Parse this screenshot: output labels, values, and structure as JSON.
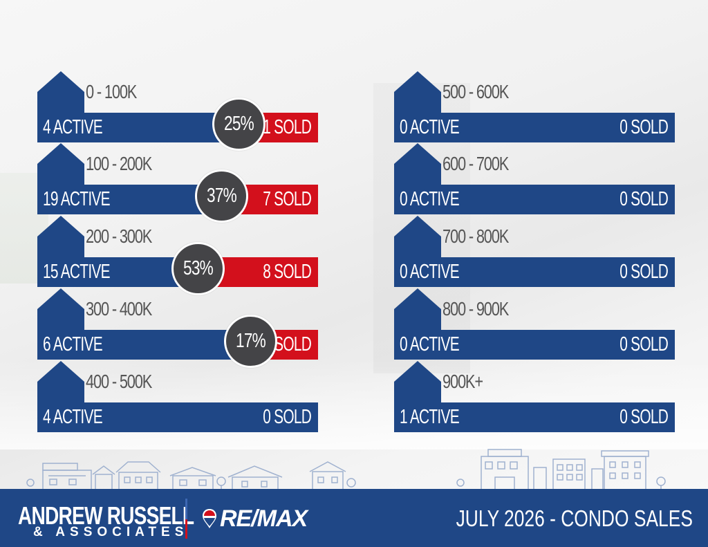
{
  "rows_left": [
    {
      "range": "0 - 100K",
      "active": "4 ACTIVE",
      "sold": "1 SOLD",
      "percent": "25%",
      "sold_fraction": 0.25
    },
    {
      "range": "100 - 200K",
      "active": "19 ACTIVE",
      "sold": "7 SOLD",
      "percent": "37%",
      "sold_fraction": 0.37
    },
    {
      "range": "200 - 300K",
      "active": "15 ACTIVE",
      "sold": "8 SOLD",
      "percent": "53%",
      "sold_fraction": 0.53
    },
    {
      "range": "300 - 400K",
      "active": "6 ACTIVE",
      "sold": "1 SOLD",
      "percent": "17%",
      "sold_fraction": 0.17
    },
    {
      "range": "400 - 500K",
      "active": "4 ACTIVE",
      "sold": "0 SOLD",
      "percent": "",
      "sold_fraction": 0
    }
  ],
  "rows_right": [
    {
      "range": "500 - 600K",
      "active": "0 ACTIVE",
      "sold": "0 SOLD",
      "percent": "",
      "sold_fraction": 0
    },
    {
      "range": "600 - 700K",
      "active": "0 ACTIVE",
      "sold": "0 SOLD",
      "percent": "",
      "sold_fraction": 0
    },
    {
      "range": "700 - 800K",
      "active": "0 ACTIVE",
      "sold": "0 SOLD",
      "percent": "",
      "sold_fraction": 0
    },
    {
      "range": "800 - 900K",
      "active": "0 ACTIVE",
      "sold": "0 SOLD",
      "percent": "",
      "sold_fraction": 0
    },
    {
      "range": "900K+",
      "active": "1 ACTIVE",
      "sold": "0 SOLD",
      "percent": "",
      "sold_fraction": 0
    }
  ],
  "footer": {
    "brand": "ANDREW RUSSELL",
    "brand_sub": "& ASSOCIATES",
    "partner": "RE/MAX",
    "title": "JULY 2026 -  CONDO SALES"
  },
  "colors": {
    "bar_blue": "#1f4786",
    "sold_red": "#d3101c",
    "circle_gray": "#444447",
    "range_text": "#555555"
  },
  "icons": {
    "row_icon": "house-icon",
    "skyline": "city-skyline-illustration",
    "partner_logo": "remax-balloon-icon"
  }
}
